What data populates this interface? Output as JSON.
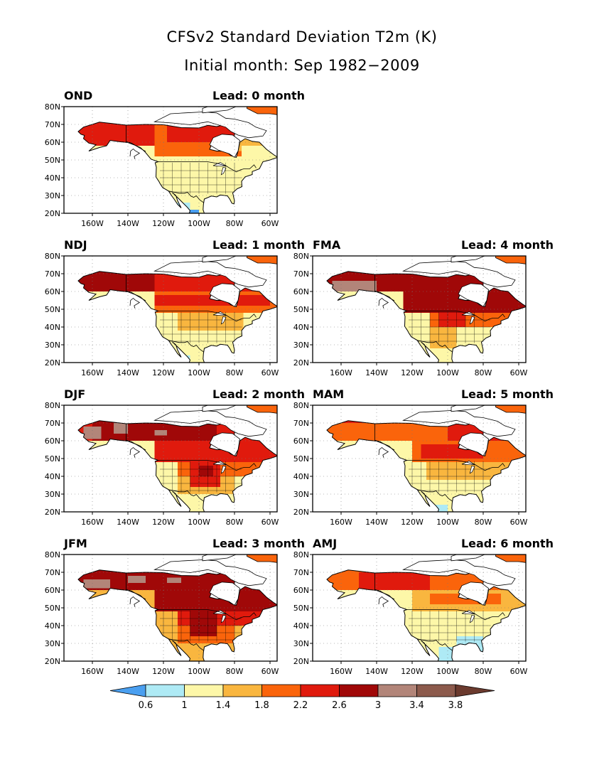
{
  "title": "CFSv2 Standard Deviation T2m (K)",
  "subtitle": "Initial month: Sep 1982−2009",
  "chart_data": {
    "type": "heatmap",
    "variable": "T2m standard deviation",
    "units": "K",
    "region": "North America",
    "lat_ticks": [
      "20N",
      "30N",
      "40N",
      "50N",
      "60N",
      "70N",
      "80N"
    ],
    "lon_ticks": [
      "160W",
      "140W",
      "120W",
      "100W",
      "80W",
      "60W"
    ],
    "lat_range": [
      20,
      80
    ],
    "lon_range": [
      -176,
      -56
    ],
    "grid": "dotted",
    "legend": {
      "placement": "bottom",
      "levels": [
        "0.6",
        "1",
        "1.4",
        "1.8",
        "2.2",
        "2.6",
        "3",
        "3.4",
        "3.8"
      ],
      "colors": [
        "#4a9ff0",
        "#aeeaf5",
        "#fdf7a8",
        "#f9b63f",
        "#fa640b",
        "#e01a0d",
        "#a00808",
        "#b28579",
        "#8c5a4c",
        "#6b3a2e"
      ]
    },
    "panels": [
      {
        "season": "OND",
        "lead": "Lead: 0 month"
      },
      {
        "season": "NDJ",
        "lead": "Lead: 1 month"
      },
      {
        "season": "DJF",
        "lead": "Lead: 2 month"
      },
      {
        "season": "JFM",
        "lead": "Lead: 3 month"
      },
      {
        "season": "FMA",
        "lead": "Lead: 4 month"
      },
      {
        "season": "MAM",
        "lead": "Lead: 5 month"
      },
      {
        "season": "AMJ",
        "lead": "Lead: 6 month"
      }
    ]
  }
}
